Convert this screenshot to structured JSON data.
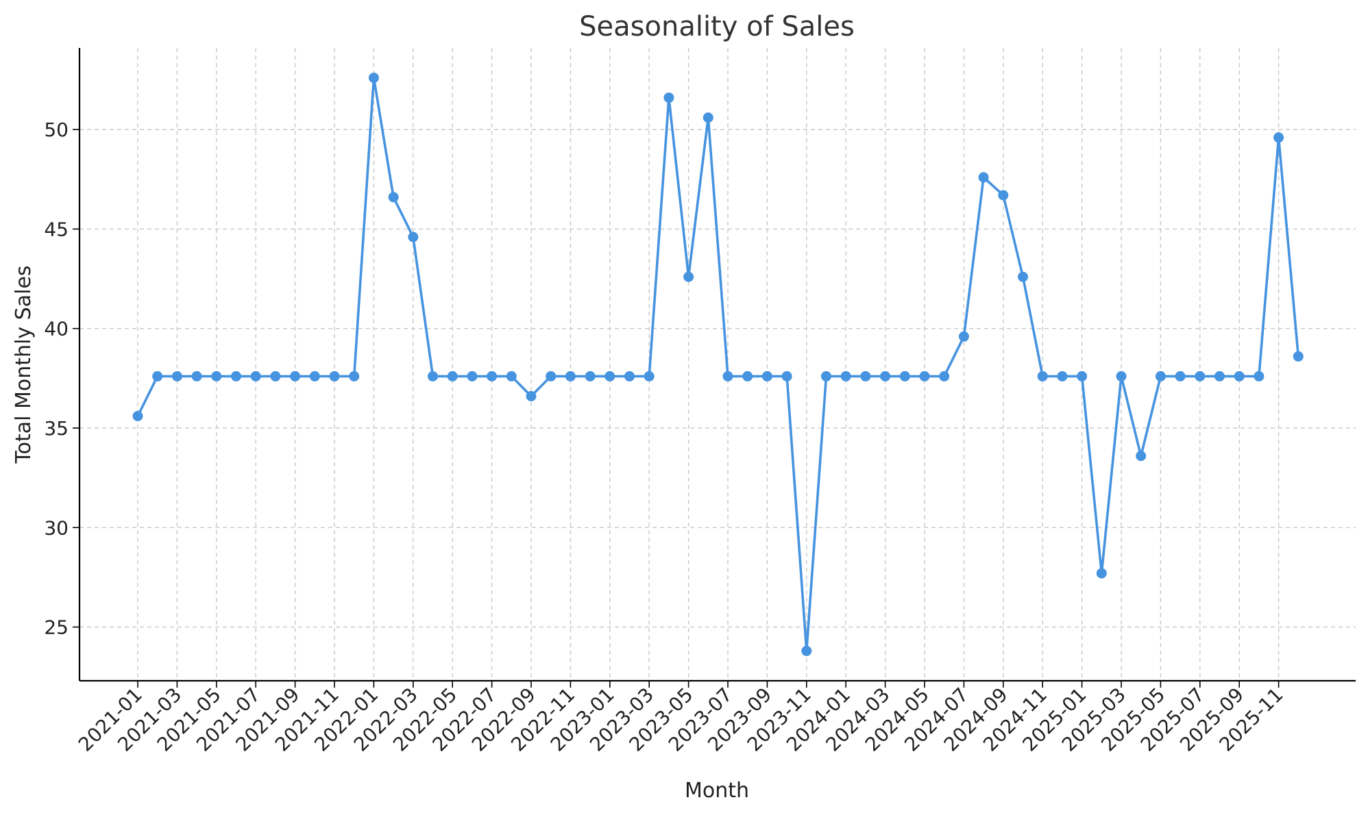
{
  "chart_data": {
    "type": "line",
    "title": "Seasonality of Sales",
    "xlabel": "Month",
    "ylabel": "Total Monthly Sales",
    "x": [
      "2021-01",
      "2021-02",
      "2021-03",
      "2021-04",
      "2021-05",
      "2021-06",
      "2021-07",
      "2021-08",
      "2021-09",
      "2021-10",
      "2021-11",
      "2021-12",
      "2022-01",
      "2022-02",
      "2022-03",
      "2022-04",
      "2022-05",
      "2022-06",
      "2022-07",
      "2022-08",
      "2022-09",
      "2022-10",
      "2022-11",
      "2022-12",
      "2023-01",
      "2023-02",
      "2023-03",
      "2023-04",
      "2023-05",
      "2023-06",
      "2023-07",
      "2023-08",
      "2023-09",
      "2023-10",
      "2023-11",
      "2023-12",
      "2024-01",
      "2024-02",
      "2024-03",
      "2024-04",
      "2024-05",
      "2024-06",
      "2024-07",
      "2024-08",
      "2024-09",
      "2024-10",
      "2024-11",
      "2024-12",
      "2025-01",
      "2025-02",
      "2025-03",
      "2025-04",
      "2025-05",
      "2025-06",
      "2025-07",
      "2025-08",
      "2025-09",
      "2025-10",
      "2025-11",
      "2025-12"
    ],
    "x_tick_labels": [
      "2021-01",
      "2021-03",
      "2021-05",
      "2021-07",
      "2021-09",
      "2021-11",
      "2022-01",
      "2022-03",
      "2022-05",
      "2022-07",
      "2022-09",
      "2022-11",
      "2023-01",
      "2023-03",
      "2023-05",
      "2023-07",
      "2023-09",
      "2023-11",
      "2024-01",
      "2024-03",
      "2024-05",
      "2024-07",
      "2024-09",
      "2024-11",
      "2025-01",
      "2025-03",
      "2025-05",
      "2025-07",
      "2025-09",
      "2025-11"
    ],
    "series": [
      {
        "values": [
          35.6,
          37.6,
          37.6,
          37.6,
          37.6,
          37.6,
          37.6,
          37.6,
          37.6,
          37.6,
          37.6,
          37.6,
          52.6,
          46.6,
          44.6,
          37.6,
          37.6,
          37.6,
          37.6,
          37.6,
          36.6,
          37.6,
          37.6,
          37.6,
          37.6,
          37.6,
          37.6,
          51.6,
          42.6,
          50.6,
          37.6,
          37.6,
          37.6,
          37.6,
          23.8,
          37.6,
          37.6,
          37.6,
          37.6,
          37.6,
          37.6,
          37.6,
          39.6,
          47.6,
          46.7,
          42.6,
          37.6,
          37.6,
          37.6,
          27.7,
          37.6,
          33.6,
          37.6,
          37.6,
          37.6,
          37.6,
          37.6,
          37.6,
          49.6,
          38.6
        ],
        "color": "#4693e0"
      }
    ],
    "y_ticks": [
      25,
      30,
      35,
      40,
      45,
      50
    ],
    "ylim": [
      22.3,
      54.1
    ],
    "grid": true,
    "marker": "circle"
  }
}
